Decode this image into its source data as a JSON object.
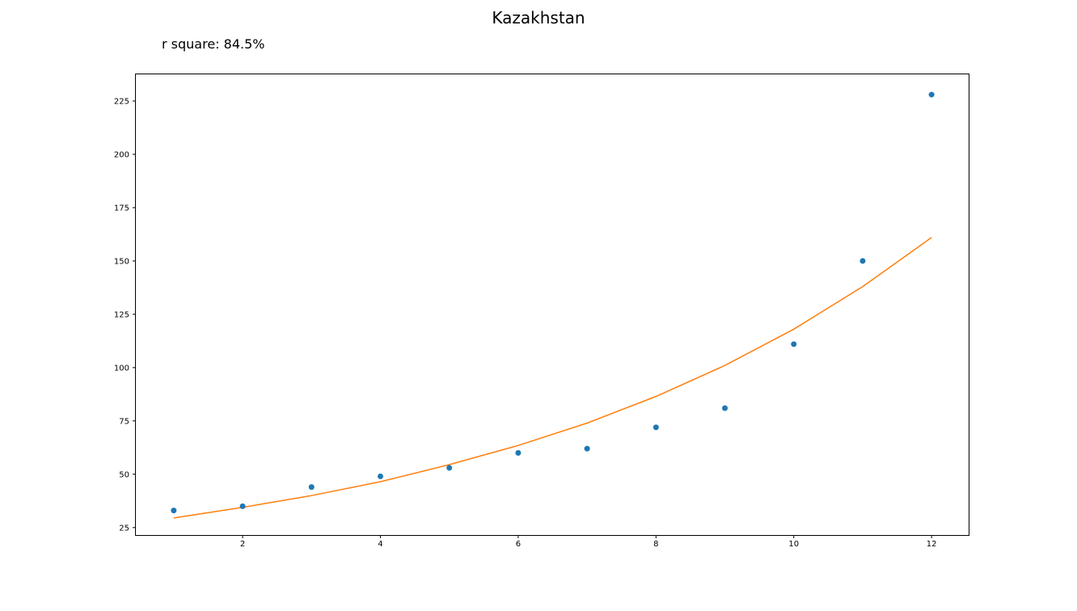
{
  "chart_data": {
    "type": "scatter",
    "title": "Kazakhstan",
    "annotation": "r square: 84.5%",
    "xlabel": "",
    "ylabel": "",
    "xlim": [
      0.45,
      12.55
    ],
    "ylim": [
      21.5,
      237.5
    ],
    "x_ticks": [
      2,
      4,
      6,
      8,
      10,
      12
    ],
    "y_ticks": [
      25,
      50,
      75,
      100,
      125,
      150,
      175,
      200,
      225
    ],
    "grid": false,
    "series": [
      {
        "type": "scatter",
        "color": "#1f77b4",
        "x": [
          1,
          2,
          3,
          4,
          5,
          6,
          7,
          8,
          9,
          10,
          11,
          12
        ],
        "y": [
          33,
          35,
          44,
          49,
          53,
          60,
          62,
          72,
          81,
          111,
          150,
          228
        ]
      },
      {
        "type": "line",
        "color": "#ff7f0e",
        "x": [
          1,
          2,
          3,
          4,
          5,
          6,
          7,
          8,
          9,
          10,
          11,
          12
        ],
        "y": [
          29.5,
          34.5,
          40,
          46.5,
          54.5,
          63.5,
          74,
          86.5,
          101,
          118,
          138,
          161
        ]
      }
    ]
  }
}
